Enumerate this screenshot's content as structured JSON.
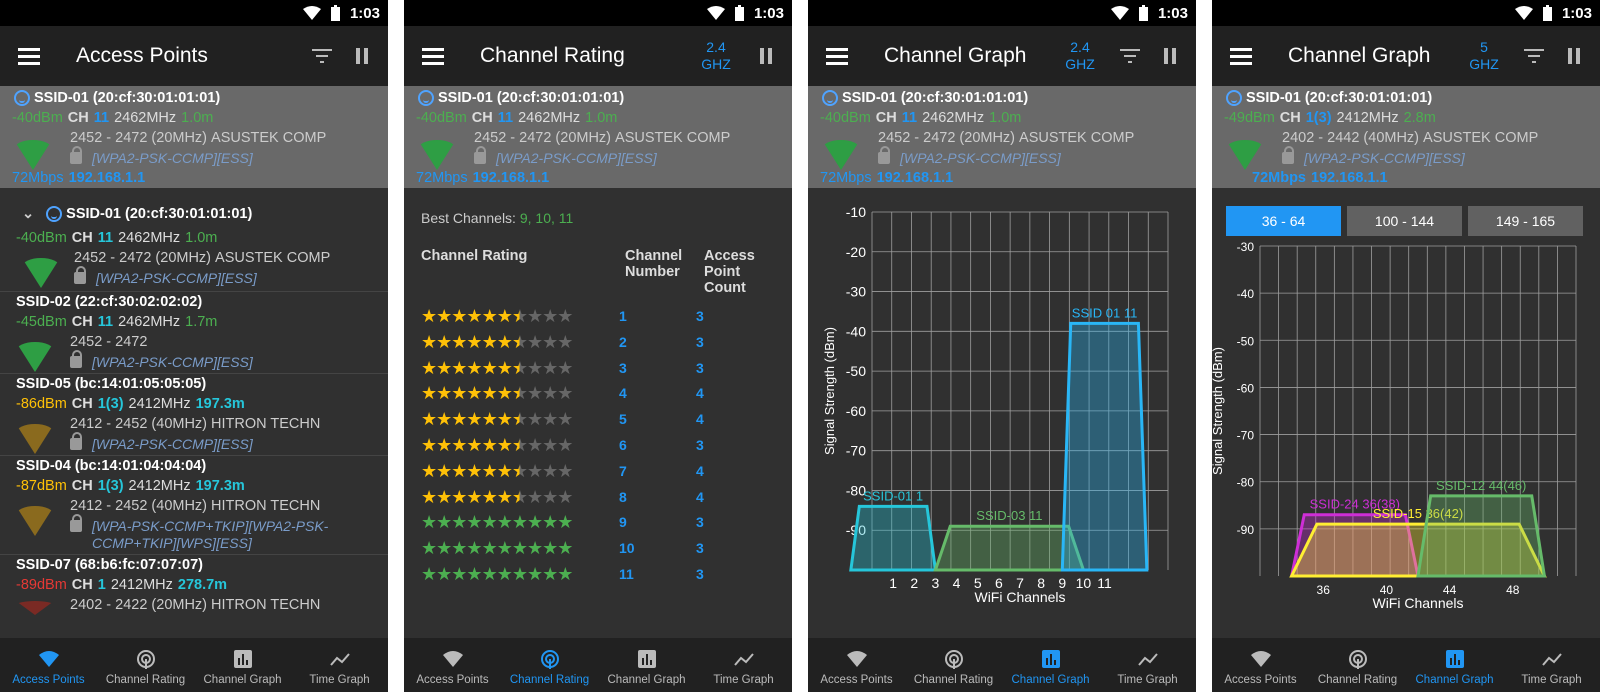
{
  "status": {
    "time": "1:03"
  },
  "nav": [
    {
      "label": "Access Points",
      "icon": "wifi-icon"
    },
    {
      "label": "Channel Rating",
      "icon": "radar-icon"
    },
    {
      "label": "Channel Graph",
      "icon": "bar-chart-icon"
    },
    {
      "label": "Time Graph",
      "icon": "line-chart-icon"
    }
  ],
  "colors": {
    "accent": "#2196f3",
    "highlight": "#696969",
    "green": "#4caf50",
    "yellow": "#ffc107",
    "red": "#e53935"
  },
  "header_ap": {
    "ssid": "SSID-01 (20:cf:30:01:01:01)",
    "dbm": "-40dBm",
    "ch_label": "CH",
    "ch": "11",
    "mhz": "2462MHz",
    "dist": "1.0m",
    "range": "2452 - 2472 (20MHz)",
    "vendor": "ASUSTEK COMP",
    "security": "[WPA2-PSK-CCMP][ESS]",
    "speed": "72Mbps",
    "ip": "192.168.1.1"
  },
  "header_ap5": {
    "ssid": "SSID-01 (20:cf:30:01:01:01)",
    "dbm": "-49dBm",
    "ch_label": "CH",
    "ch": "1(3)",
    "mhz": "2412MHz",
    "dist": "2.8m",
    "range": "2402 - 2442 (40MHz)",
    "vendor": "ASUSTEK COMP",
    "security": "[WPA2-PSK-CCMP][ESS]",
    "speed": "72Mbps",
    "ip": "192.168.1.1"
  },
  "screen1": {
    "title": "Access Points",
    "list": [
      {
        "ssid": "SSID-01 (20:cf:30:01:01:01)",
        "dbm": "-40dBm",
        "ch": "11",
        "mhz": "2462MHz",
        "dist": "1.0m",
        "range": "2452 - 2472 (20MHz)",
        "vendor": "ASUSTEK COMP",
        "security": "[WPA2-PSK-CCMP][ESS]"
      },
      {
        "ssid": "SSID-02 (22:cf:30:02:02:02)",
        "dbm": "-45dBm",
        "ch": "11",
        "mhz": "2462MHz",
        "dist": "1.7m",
        "range": "2452 - 2472",
        "vendor": "",
        "security": "[WPA2-PSK-CCMP][ESS]"
      },
      {
        "ssid": "SSID-05 (bc:14:01:05:05:05)",
        "dbm": "-86dBm",
        "ch": "1(3)",
        "mhz": "2412MHz",
        "dist": "197.3m",
        "range": "2412 - 2452 (40MHz)",
        "vendor": "HITRON TECHN",
        "security": "[WPA2-PSK-CCMP][ESS]"
      },
      {
        "ssid": "SSID-04 (bc:14:01:04:04:04)",
        "dbm": "-87dBm",
        "ch": "1(3)",
        "mhz": "2412MHz",
        "dist": "197.3m",
        "range": "2412 - 2452 (40MHz)",
        "vendor": "HITRON TECHN",
        "security": "[WPA-PSK-CCMP+TKIP][WPA2-PSK-",
        "security2": "CCMP+TKIP][WPS][ESS]"
      },
      {
        "ssid": "SSID-07 (68:b6:fc:07:07:07)",
        "dbm": "-89dBm",
        "ch": "1",
        "mhz": "2412MHz",
        "dist": "278.7m",
        "range": "2402 - 2422 (20MHz)",
        "vendor": "HITRON TECHN"
      }
    ]
  },
  "screen2": {
    "title": "Channel Rating",
    "band": [
      "2.4",
      "GHZ"
    ],
    "best_label": "Best Channels:",
    "best": "9, 10, 11",
    "col1": "Channel Rating",
    "col2": "Channel Number",
    "col3": "Access Point Count",
    "rows": [
      {
        "stars": 6.5,
        "ch": "1",
        "count": "3"
      },
      {
        "stars": 6.5,
        "ch": "2",
        "count": "3"
      },
      {
        "stars": 6.5,
        "ch": "3",
        "count": "3"
      },
      {
        "stars": 6.5,
        "ch": "4",
        "count": "4"
      },
      {
        "stars": 6.5,
        "ch": "5",
        "count": "4"
      },
      {
        "stars": 6.5,
        "ch": "6",
        "count": "3"
      },
      {
        "stars": 6.5,
        "ch": "7",
        "count": "4"
      },
      {
        "stars": 6.5,
        "ch": "8",
        "count": "4"
      },
      {
        "stars": 10,
        "ch": "9",
        "count": "3"
      },
      {
        "stars": 10,
        "ch": "10",
        "count": "3"
      },
      {
        "stars": 10,
        "ch": "11",
        "count": "3"
      }
    ]
  },
  "screen3": {
    "title": "Channel Graph",
    "band": [
      "2.4",
      "GHZ"
    ]
  },
  "screen4": {
    "title": "Channel Graph",
    "band": [
      "5",
      "GHZ"
    ],
    "tabs": [
      "36 - 64",
      "100 - 144",
      "149 - 165"
    ]
  },
  "chart_data": [
    {
      "type": "area",
      "ylabel": "Signal Strength (dBm)",
      "xlabel": "WiFi Channels",
      "ylim": [
        -100,
        -10
      ],
      "yticks": [
        -10,
        -20,
        -30,
        -40,
        -50,
        -60,
        -70,
        -80,
        -90
      ],
      "xlim": [
        0,
        14
      ],
      "xticks": [
        1,
        2,
        3,
        4,
        5,
        6,
        7,
        8,
        9,
        10,
        11
      ],
      "series": [
        {
          "name": "SSID-01 1",
          "left": -1,
          "right": 3,
          "level": -84,
          "color": "#26c6da"
        },
        {
          "name": "SSID-03 11",
          "left": 3,
          "right": 10,
          "level": -89,
          "color": "#66bb6a"
        },
        {
          "name": "SSID 01 11",
          "left": 9,
          "right": 13,
          "level": -38,
          "color": "#29b6f6"
        }
      ],
      "grid": true
    },
    {
      "type": "area",
      "ylabel": "Signal Strength (dBm)",
      "xlabel": "WiFi Channels",
      "ylim": [
        -100,
        -30
      ],
      "yticks": [
        -30,
        -40,
        -50,
        -60,
        -70,
        -80,
        -90
      ],
      "xlim": [
        32,
        52
      ],
      "xticks": [
        36,
        40,
        44,
        48
      ],
      "series": [
        {
          "name": "SSID-24 36(38)",
          "left": 34,
          "right": 42,
          "level": -87,
          "color": "#ce2ed6"
        },
        {
          "name": "SSID-15 36(42)",
          "left": 34,
          "right": 50,
          "level": -89,
          "color": "#ffee33"
        },
        {
          "name": "SSID-12 44(46)",
          "left": 42,
          "right": 50,
          "level": -83,
          "color": "#66bb6a"
        }
      ],
      "grid": true
    }
  ]
}
